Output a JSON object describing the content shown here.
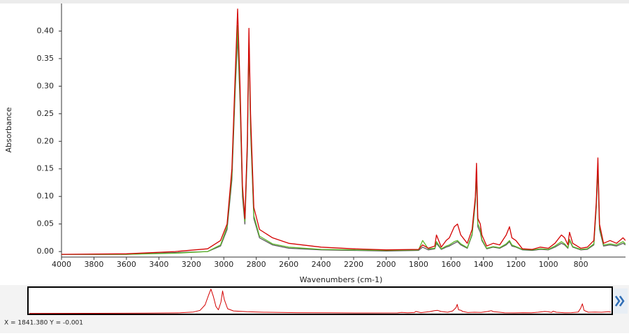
{
  "chart_data": {
    "type": "line",
    "x_label": "Wavenumbers (cm-1)",
    "y_label": "Absorbance",
    "xlim": [
      4000,
      525
    ],
    "ylim": [
      -0.01,
      0.45
    ],
    "xticks": [
      4000,
      3800,
      3600,
      3400,
      3200,
      3000,
      2800,
      2600,
      2400,
      2200,
      2000,
      1800,
      1600,
      1400,
      1200,
      1000,
      800
    ],
    "yticks": [
      {
        "value": 0,
        "label": "0.00"
      },
      {
        "value": 0.05,
        "label": "0.05"
      },
      {
        "value": 0.1,
        "label": "0.10"
      },
      {
        "value": 0.15,
        "label": "0.15"
      },
      {
        "value": 0.2,
        "label": "0.20"
      },
      {
        "value": 0.25,
        "label": "0.25"
      },
      {
        "value": 0.3,
        "label": "0.30"
      },
      {
        "value": 0.35,
        "label": "0.35"
      },
      {
        "value": 0.4,
        "label": "0.40"
      }
    ],
    "x": [
      4000,
      3600,
      3300,
      3100,
      3020,
      2980,
      2950,
      2930,
      2915,
      2900,
      2885,
      2870,
      2855,
      2845,
      2835,
      2815,
      2780,
      2700,
      2600,
      2400,
      2200,
      2000,
      1800,
      1775,
      1740,
      1700,
      1690,
      1660,
      1630,
      1610,
      1580,
      1560,
      1540,
      1500,
      1470,
      1450,
      1443,
      1435,
      1420,
      1410,
      1380,
      1340,
      1300,
      1260,
      1240,
      1225,
      1200,
      1160,
      1100,
      1050,
      1000,
      960,
      920,
      900,
      880,
      870,
      850,
      800,
      760,
      720,
      705,
      695,
      685,
      660,
      620,
      580,
      540,
      525
    ],
    "series": [
      {
        "color": "#5a5a5a",
        "values": [
          -0.005,
          -0.005,
          -0.002,
          0,
          0.01,
          0.04,
          0.13,
          0.29,
          0.39,
          0.27,
          0.1,
          0.05,
          0.18,
          0.38,
          0.22,
          0.06,
          0.025,
          0.012,
          0.006,
          0.003,
          0.002,
          0.001,
          0.002,
          0.008,
          0.003,
          0.005,
          0.015,
          0.004,
          0.008,
          0.01,
          0.015,
          0.018,
          0.012,
          0.006,
          0.03,
          0.09,
          0.14,
          0.045,
          0.035,
          0.02,
          0.005,
          0.008,
          0.006,
          0.012,
          0.018,
          0.01,
          0.008,
          0.003,
          0.002,
          0.004,
          0.003,
          0.008,
          0.015,
          0.012,
          0.006,
          0.02,
          0.008,
          0.003,
          0.004,
          0.012,
          0.08,
          0.15,
          0.04,
          0.01,
          0.012,
          0.01,
          0.015,
          0.012
        ]
      },
      {
        "color": "#5cb82a",
        "values": [
          -0.005,
          -0.005,
          -0.003,
          0,
          0.012,
          0.045,
          0.14,
          0.3,
          0.41,
          0.28,
          0.11,
          0.055,
          0.19,
          0.39,
          0.23,
          0.065,
          0.028,
          0.014,
          0.008,
          0.004,
          0.003,
          0.002,
          0.003,
          0.02,
          0.005,
          0.006,
          0.018,
          0.005,
          0.01,
          0.012,
          0.018,
          0.02,
          0.014,
          0.007,
          0.032,
          0.095,
          0.15,
          0.05,
          0.04,
          0.022,
          0.006,
          0.009,
          0.007,
          0.014,
          0.02,
          0.012,
          0.009,
          0.004,
          0.003,
          0.005,
          0.004,
          0.01,
          0.018,
          0.014,
          0.007,
          0.022,
          0.009,
          0.004,
          0.005,
          0.014,
          0.085,
          0.16,
          0.045,
          0.012,
          0.014,
          0.012,
          0.018,
          0.014
        ]
      },
      {
        "color": "#d40000",
        "values": [
          -0.005,
          -0.004,
          0,
          0.005,
          0.02,
          0.05,
          0.15,
          0.32,
          0.44,
          0.3,
          0.12,
          0.06,
          0.2,
          0.405,
          0.25,
          0.08,
          0.04,
          0.025,
          0.015,
          0.008,
          0.005,
          0.003,
          0.004,
          0.012,
          0.006,
          0.01,
          0.03,
          0.008,
          0.02,
          0.025,
          0.045,
          0.05,
          0.03,
          0.015,
          0.04,
          0.1,
          0.16,
          0.06,
          0.05,
          0.03,
          0.01,
          0.015,
          0.012,
          0.03,
          0.045,
          0.025,
          0.02,
          0.005,
          0.004,
          0.008,
          0.006,
          0.015,
          0.03,
          0.025,
          0.012,
          0.035,
          0.015,
          0.006,
          0.008,
          0.02,
          0.09,
          0.17,
          0.05,
          0.015,
          0.02,
          0.015,
          0.025,
          0.02
        ]
      }
    ]
  },
  "status_text": "X = 1841.380 Y = -0.001"
}
